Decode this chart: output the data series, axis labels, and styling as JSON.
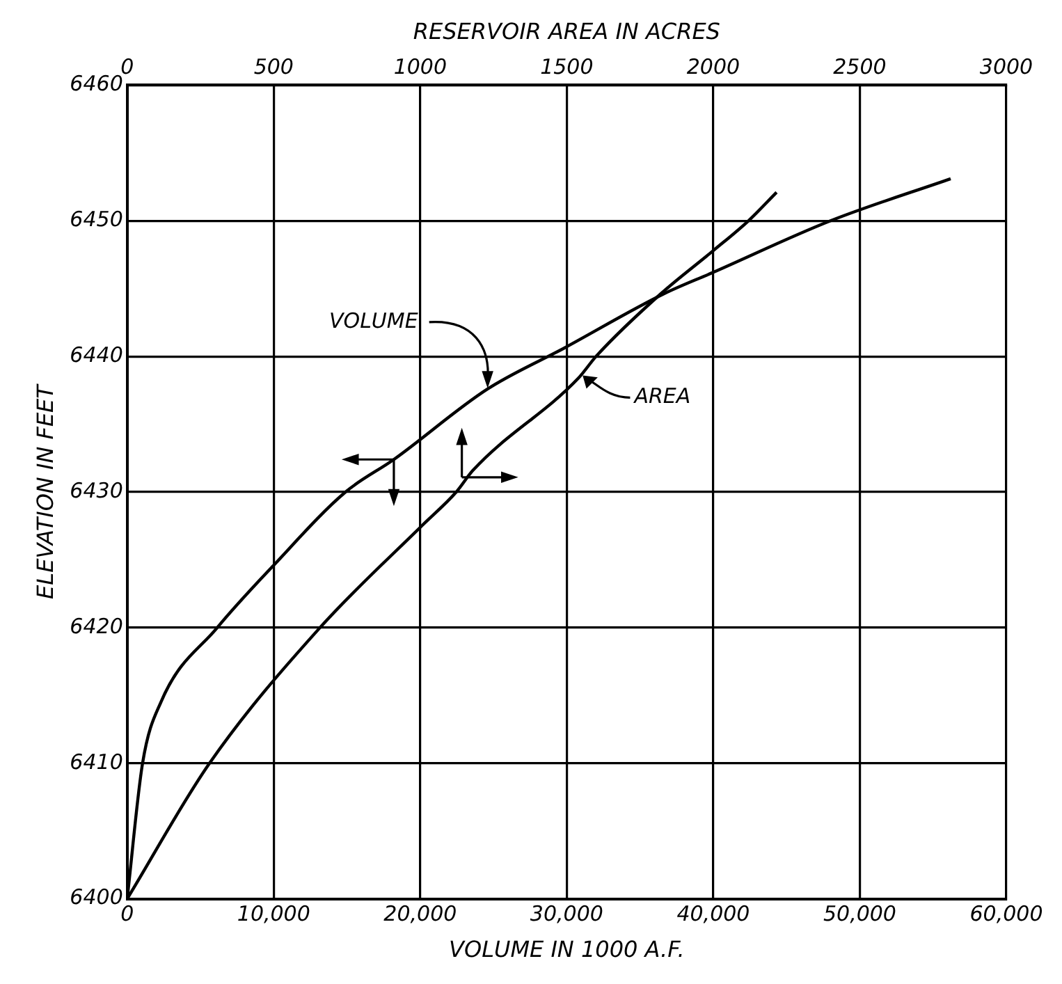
{
  "chart_data": {
    "type": "line",
    "x2label": "RESERVOIR AREA IN ACRES",
    "xlabel": "VOLUME IN 1000 A.F.",
    "ylabel": "ELEVATION IN FEET",
    "xlim": [
      0,
      60000
    ],
    "xticks": [
      0,
      {
        "value": 10000,
        "label": "10,000"
      },
      {
        "value": 20000,
        "label": "20,000"
      },
      {
        "value": 30000,
        "label": "30,000"
      },
      {
        "value": 40000,
        "label": "40,000"
      },
      {
        "value": 50000,
        "label": "50,000"
      },
      {
        "value": 60000,
        "label": "60,000"
      }
    ],
    "x2lim": [
      0,
      3000
    ],
    "x2ticks": [
      0,
      500,
      1000,
      1500,
      2000,
      2500,
      3000
    ],
    "ylim": [
      6400,
      6460
    ],
    "yticks": [
      6400,
      6410,
      6420,
      6430,
      6440,
      6450,
      6460
    ],
    "grid": true,
    "marker": "none",
    "line_style": "solid",
    "series": [
      {
        "color": "#000000",
        "x": [
          0,
          1050,
          2300,
          6150,
          10000,
          14900,
          18200,
          24600,
          29800,
          36600,
          40000,
          48000,
          56200
        ],
        "values": [
          6400,
          6410,
          6414.5,
          6420,
          6424.6,
          6430,
          6432.4,
          6437.6,
          6440.6,
          6444.6,
          6446.2,
          6450,
          6453.1
        ]
      },
      {
        "color": "#000000",
        "axis": "x2",
        "x": [
          0,
          281,
          658,
          1005,
          1123,
          1180,
          1540,
          1600,
          1820,
          2000,
          2120,
          2216
        ],
        "values": [
          6400,
          6410,
          6420,
          6427.5,
          6430,
          6431.6,
          6438.4,
          6440,
          6444.6,
          6447.8,
          6450,
          6452.1
        ]
      }
    ],
    "annotations": [
      {
        "text": "VOLUME",
        "x": 24600,
        "y": 6437.6
      },
      {
        "text": "AREA",
        "x": 31000,
        "y": 6438.5
      }
    ]
  }
}
